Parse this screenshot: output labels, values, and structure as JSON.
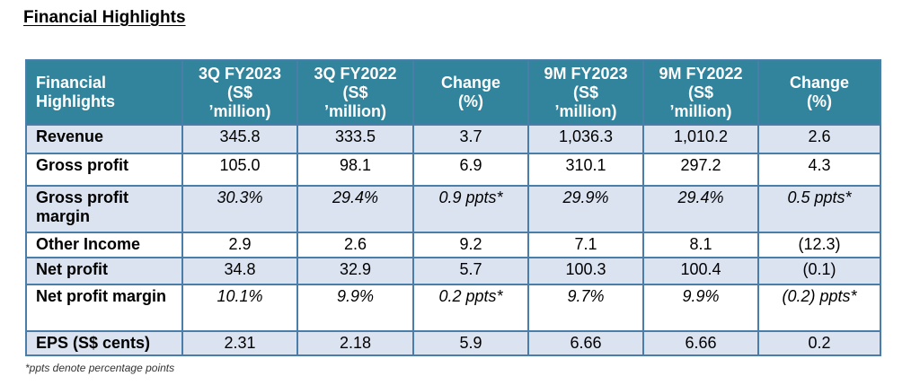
{
  "heading": "Financial Highlights",
  "table": {
    "headers": [
      [
        "Financial",
        "Highlights"
      ],
      [
        "3Q FY2023",
        "(S$",
        "’million)"
      ],
      [
        "3Q FY2022",
        "(S$",
        "’million)"
      ],
      [
        "Change",
        "(%)"
      ],
      [
        "9M FY2023",
        "(S$",
        "’million)"
      ],
      [
        "9M FY2022",
        "(S$",
        "’million)"
      ],
      [
        "Change",
        "(%)"
      ]
    ],
    "rows": [
      {
        "label": "Revenue",
        "values": [
          "345.8",
          "333.5",
          "3.7",
          "1,036.3",
          "1,010.2",
          "2.6"
        ]
      },
      {
        "label": "Gross profit",
        "values": [
          "105.0",
          "98.1",
          "6.9",
          "310.1",
          "297.2",
          "4.3"
        ]
      },
      {
        "label": "Gross profit margin",
        "values": [
          "30.3%",
          "29.4%",
          "0.9 ppts*",
          "29.9%",
          "29.4%",
          "0.5 ppts*"
        ]
      },
      {
        "label": "Other Income",
        "values": [
          "2.9",
          "2.6",
          "9.2",
          "7.1",
          "8.1",
          "(12.3)"
        ]
      },
      {
        "label": "Net profit",
        "values": [
          "34.8",
          "32.9",
          "5.7",
          "100.3",
          "100.4",
          "(0.1)"
        ]
      },
      {
        "label": "Net profit margin",
        "values": [
          "10.1%",
          "9.9%",
          "0.2 ppts*",
          "9.7%",
          "9.9%",
          "(0.2) ppts*"
        ]
      },
      {
        "label": "EPS (S$ cents)",
        "values": [
          "2.31",
          "2.18",
          "5.9",
          "6.66",
          "6.66",
          "0.2"
        ]
      }
    ]
  },
  "footnote": "*ppts denote percentage points",
  "colors": {
    "header_bg": "#31849b",
    "row_shade": "#dbe3f1",
    "border": "#4a7ea8"
  }
}
